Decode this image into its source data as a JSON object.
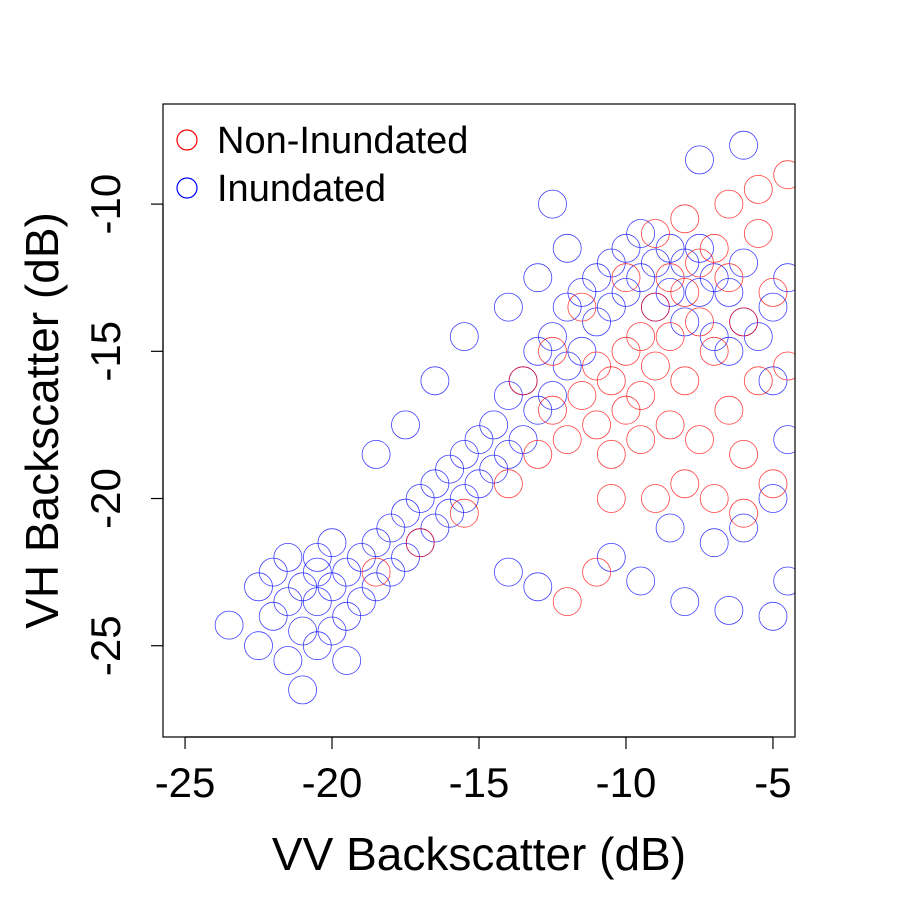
{
  "chart_data": {
    "type": "scatter",
    "title": "",
    "xlabel": "VV Backscatter (dB)",
    "ylabel": "VH Backscatter (dB)",
    "xlim": [
      -25.75,
      -4.25
    ],
    "ylim": [
      -28.1,
      -6.6
    ],
    "xticks": [
      -25,
      -20,
      -15,
      -10,
      -5
    ],
    "yticks": [
      -25,
      -20,
      -15,
      -10
    ],
    "xtick_labels": [
      "-25",
      "-20",
      "-15",
      "-10",
      "-5"
    ],
    "ytick_labels": [
      "-25",
      "-20",
      "-15",
      "-10"
    ],
    "grid": false,
    "legend_position": "top-left",
    "marker": "open-circle",
    "series": [
      {
        "name": "Non-Inundated",
        "color": "#ff0000",
        "points": [
          [
            -18.5,
            -22.5
          ],
          [
            -17.0,
            -21.5
          ],
          [
            -15.5,
            -20.5
          ],
          [
            -14.0,
            -19.5
          ],
          [
            -13.0,
            -18.5
          ],
          [
            -12.5,
            -17.0
          ],
          [
            -12.0,
            -18.0
          ],
          [
            -11.5,
            -16.5
          ],
          [
            -11.0,
            -17.5
          ],
          [
            -11.0,
            -15.5
          ],
          [
            -10.5,
            -16.0
          ],
          [
            -10.5,
            -18.5
          ],
          [
            -10.0,
            -17.0
          ],
          [
            -10.0,
            -15.0
          ],
          [
            -9.5,
            -14.5
          ],
          [
            -9.5,
            -16.5
          ],
          [
            -9.0,
            -13.5
          ],
          [
            -9.0,
            -15.5
          ],
          [
            -8.5,
            -12.5
          ],
          [
            -8.5,
            -14.5
          ],
          [
            -8.0,
            -13.0
          ],
          [
            -8.0,
            -16.0
          ],
          [
            -7.5,
            -12.0
          ],
          [
            -7.5,
            -14.0
          ],
          [
            -7.0,
            -11.5
          ],
          [
            -7.0,
            -15.0
          ],
          [
            -6.5,
            -12.5
          ],
          [
            -6.5,
            -17.0
          ],
          [
            -6.0,
            -14.0
          ],
          [
            -6.0,
            -18.5
          ],
          [
            -5.5,
            -11.0
          ],
          [
            -5.5,
            -16.0
          ],
          [
            -5.0,
            -13.0
          ],
          [
            -5.0,
            -19.5
          ],
          [
            -4.5,
            -15.5
          ],
          [
            -4.5,
            -9.0
          ],
          [
            -12.0,
            -23.5
          ],
          [
            -11.0,
            -22.5
          ],
          [
            -9.0,
            -20.0
          ],
          [
            -8.0,
            -19.5
          ],
          [
            -7.0,
            -20.0
          ],
          [
            -6.0,
            -20.5
          ],
          [
            -10.5,
            -20.0
          ],
          [
            -9.5,
            -18.0
          ],
          [
            -8.5,
            -17.5
          ],
          [
            -7.5,
            -18.0
          ],
          [
            -13.5,
            -16.0
          ],
          [
            -12.5,
            -15.0
          ],
          [
            -11.5,
            -13.5
          ],
          [
            -10.0,
            -12.5
          ],
          [
            -9.0,
            -11.0
          ],
          [
            -8.0,
            -10.5
          ],
          [
            -6.5,
            -10.0
          ],
          [
            -5.5,
            -9.5
          ]
        ]
      },
      {
        "name": "Inundated",
        "color": "#0000ff",
        "points": [
          [
            -23.5,
            -24.3
          ],
          [
            -22.5,
            -25.0
          ],
          [
            -22.5,
            -23.0
          ],
          [
            -22.0,
            -24.0
          ],
          [
            -22.0,
            -22.5
          ],
          [
            -21.5,
            -25.5
          ],
          [
            -21.5,
            -23.5
          ],
          [
            -21.5,
            -22.0
          ],
          [
            -21.0,
            -24.5
          ],
          [
            -21.0,
            -23.0
          ],
          [
            -21.0,
            -26.5
          ],
          [
            -20.5,
            -25.0
          ],
          [
            -20.5,
            -23.5
          ],
          [
            -20.5,
            -22.5
          ],
          [
            -20.0,
            -24.5
          ],
          [
            -20.0,
            -23.0
          ],
          [
            -20.0,
            -21.5
          ],
          [
            -19.5,
            -25.5
          ],
          [
            -19.5,
            -24.0
          ],
          [
            -19.5,
            -22.5
          ],
          [
            -19.0,
            -23.5
          ],
          [
            -19.0,
            -22.0
          ],
          [
            -18.5,
            -23.0
          ],
          [
            -18.5,
            -21.5
          ],
          [
            -18.0,
            -22.5
          ],
          [
            -18.0,
            -21.0
          ],
          [
            -17.5,
            -22.0
          ],
          [
            -17.5,
            -20.5
          ],
          [
            -17.0,
            -21.5
          ],
          [
            -17.0,
            -20.0
          ],
          [
            -16.5,
            -21.0
          ],
          [
            -16.5,
            -19.5
          ],
          [
            -16.0,
            -20.5
          ],
          [
            -16.0,
            -19.0
          ],
          [
            -15.5,
            -20.0
          ],
          [
            -15.5,
            -18.5
          ],
          [
            -15.0,
            -19.5
          ],
          [
            -15.0,
            -18.0
          ],
          [
            -14.5,
            -19.0
          ],
          [
            -14.5,
            -17.5
          ],
          [
            -14.0,
            -18.5
          ],
          [
            -14.0,
            -16.5
          ],
          [
            -13.5,
            -18.0
          ],
          [
            -13.5,
            -16.0
          ],
          [
            -13.0,
            -17.0
          ],
          [
            -13.0,
            -15.0
          ],
          [
            -12.5,
            -16.5
          ],
          [
            -12.5,
            -14.5
          ],
          [
            -12.0,
            -15.5
          ],
          [
            -12.0,
            -13.5
          ],
          [
            -11.5,
            -15.0
          ],
          [
            -11.5,
            -13.0
          ],
          [
            -11.0,
            -14.0
          ],
          [
            -11.0,
            -12.5
          ],
          [
            -10.5,
            -13.5
          ],
          [
            -10.5,
            -12.0
          ],
          [
            -10.0,
            -13.0
          ],
          [
            -10.0,
            -11.5
          ],
          [
            -9.5,
            -12.5
          ],
          [
            -9.5,
            -11.0
          ],
          [
            -9.0,
            -12.0
          ],
          [
            -9.0,
            -13.5
          ],
          [
            -8.5,
            -11.5
          ],
          [
            -8.5,
            -13.0
          ],
          [
            -8.0,
            -12.0
          ],
          [
            -8.0,
            -14.0
          ],
          [
            -7.5,
            -11.5
          ],
          [
            -7.5,
            -13.0
          ],
          [
            -7.0,
            -12.5
          ],
          [
            -7.0,
            -14.5
          ],
          [
            -6.5,
            -13.0
          ],
          [
            -6.5,
            -15.0
          ],
          [
            -6.0,
            -14.0
          ],
          [
            -6.0,
            -12.0
          ],
          [
            -5.5,
            -14.5
          ],
          [
            -5.0,
            -13.5
          ],
          [
            -5.0,
            -16.0
          ],
          [
            -4.5,
            -12.5
          ],
          [
            -12.5,
            -10.0
          ],
          [
            -7.5,
            -8.5
          ],
          [
            -6.0,
            -8.0
          ],
          [
            -4.5,
            -18.0
          ],
          [
            -5.0,
            -24.0
          ],
          [
            -6.5,
            -23.8
          ],
          [
            -8.0,
            -23.5
          ],
          [
            -9.5,
            -22.8
          ],
          [
            -10.5,
            -22.0
          ],
          [
            -13.0,
            -23.0
          ],
          [
            -14.0,
            -22.5
          ],
          [
            -6.0,
            -21.0
          ],
          [
            -5.0,
            -20.0
          ],
          [
            -4.5,
            -22.8
          ],
          [
            -7.0,
            -21.5
          ],
          [
            -8.5,
            -21.0
          ],
          [
            -15.5,
            -14.5
          ],
          [
            -16.5,
            -16.0
          ],
          [
            -17.5,
            -17.5
          ],
          [
            -18.5,
            -18.5
          ],
          [
            -12.0,
            -11.5
          ],
          [
            -13.0,
            -12.5
          ],
          [
            -14.0,
            -13.5
          ],
          [
            -20.5,
            -22.0
          ]
        ]
      }
    ]
  }
}
